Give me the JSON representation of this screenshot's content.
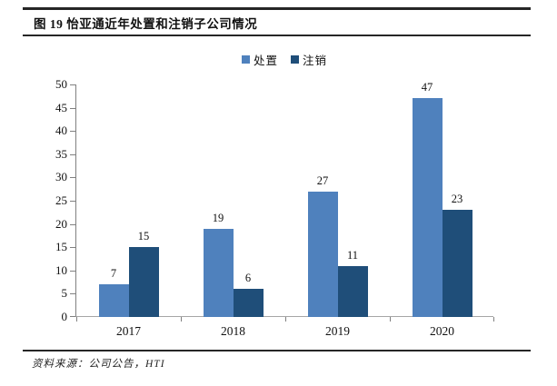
{
  "header": {
    "title": "图 19 怡亚通近年处置和注销子公司情况"
  },
  "chart_data": {
    "type": "bar",
    "title": "图 19 怡亚通近年处置和注销子公司情况",
    "categories": [
      "2017",
      "2018",
      "2019",
      "2020"
    ],
    "series": [
      {
        "name": "处置",
        "color": "#4F81BD",
        "values": [
          7,
          19,
          27,
          47
        ]
      },
      {
        "name": "注销",
        "color": "#1F4E79",
        "values": [
          15,
          6,
          11,
          23
        ]
      }
    ],
    "xlabel": "",
    "ylabel": "",
    "ylim": [
      0,
      50
    ],
    "yticks": [
      0,
      5,
      10,
      15,
      20,
      25,
      30,
      35,
      40,
      45,
      50
    ],
    "grid": false,
    "legend_position": "top",
    "value_labels": true,
    "axis_color": "#808080",
    "baseline_color": "#A6A6A6"
  },
  "footer": {
    "source": "资料来源：公司公告，HTI"
  }
}
